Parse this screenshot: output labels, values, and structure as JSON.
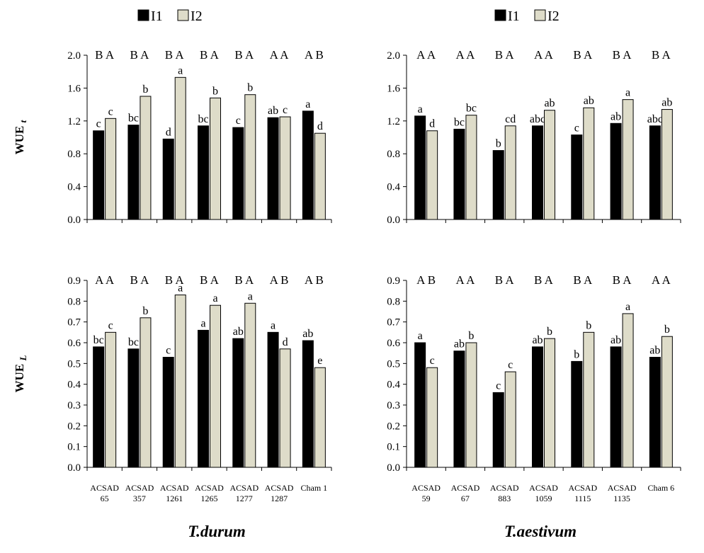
{
  "legend": {
    "left": [
      {
        "label": "I1",
        "color": "#000000"
      },
      {
        "label": "I2",
        "color": "#dedcc9"
      }
    ],
    "right": [
      {
        "label": "I1",
        "color": "#000000"
      },
      {
        "label": "I2",
        "color": "#dedcc9"
      }
    ]
  },
  "species": {
    "left": "T.durum",
    "right": "T.aestivum"
  },
  "chart_data": [
    {
      "type": "bar",
      "id": "durum-wuet",
      "ylabel": "WUE",
      "ylabel_sub": "t",
      "ylim": [
        0,
        2.0
      ],
      "yticks": [
        "0.0",
        "0.4",
        "0.8",
        "1.2",
        "1.6",
        "2.0"
      ],
      "categories": [
        "ACSAD 65",
        "ACSAD 357",
        "ACSAD 1261",
        "ACSAD 1265",
        "ACSAD 1277",
        "ACSAD 1287",
        "Cham 1"
      ],
      "group_letters": [
        "B A",
        "B A",
        "B A",
        "B A",
        "B A",
        "A A",
        "A B"
      ],
      "series": [
        {
          "name": "I1",
          "values": [
            1.08,
            1.15,
            0.98,
            1.14,
            1.12,
            1.24,
            1.32
          ],
          "letters": [
            "c",
            "bc",
            "d",
            "bc",
            "c",
            "ab",
            "a"
          ]
        },
        {
          "name": "I2",
          "values": [
            1.23,
            1.5,
            1.73,
            1.48,
            1.52,
            1.25,
            1.05
          ],
          "letters": [
            "c",
            "b",
            "a",
            "b",
            "b",
            "c",
            "d"
          ]
        }
      ],
      "xlabels": []
    },
    {
      "type": "bar",
      "id": "aestivum-wuet",
      "ylabel": "",
      "ylabel_sub": "",
      "ylim": [
        0,
        2.0
      ],
      "yticks": [
        "0.0",
        "0.4",
        "0.8",
        "1.2",
        "1.6",
        "2.0"
      ],
      "categories": [
        "ACSAD 59",
        "ACSAD 67",
        "ACSAD 883",
        "ACSAD 1059",
        "ACSAD 1115",
        "ACSAD 1135",
        "Cham 6"
      ],
      "group_letters": [
        "A A",
        "A A",
        "B A",
        "A A",
        "B A",
        "B A",
        "B A"
      ],
      "series": [
        {
          "name": "I1",
          "values": [
            1.26,
            1.1,
            0.84,
            1.14,
            1.03,
            1.17,
            1.14
          ],
          "letters": [
            "a",
            "bc",
            "b",
            "abc",
            "c",
            "ab",
            "abc"
          ]
        },
        {
          "name": "I2",
          "values": [
            1.08,
            1.27,
            1.14,
            1.33,
            1.36,
            1.46,
            1.34
          ],
          "letters": [
            "d",
            "bc",
            "cd",
            "ab",
            "ab",
            "a",
            "ab"
          ]
        }
      ],
      "xlabels": []
    },
    {
      "type": "bar",
      "id": "durum-wuel",
      "ylabel": "WUE",
      "ylabel_sub": "L",
      "ylim": [
        0,
        0.9
      ],
      "yticks": [
        "0.0",
        "0.1",
        "0.2",
        "0.3",
        "0.4",
        "0.5",
        "0.6",
        "0.7",
        "0.8",
        "0.9"
      ],
      "categories": [
        "ACSAD 65",
        "ACSAD 357",
        "ACSAD 1261",
        "ACSAD 1265",
        "ACSAD 1277",
        "ACSAD 1287",
        "Cham 1"
      ],
      "group_letters": [
        "A A",
        "B A",
        "B A",
        "B A",
        "B A",
        "A B",
        "A B"
      ],
      "series": [
        {
          "name": "I1",
          "values": [
            0.58,
            0.57,
            0.53,
            0.66,
            0.62,
            0.65,
            0.61
          ],
          "letters": [
            "bc",
            "bc",
            "c",
            "a",
            "ab",
            "a",
            "ab"
          ]
        },
        {
          "name": "I2",
          "values": [
            0.65,
            0.72,
            0.83,
            0.78,
            0.79,
            0.57,
            0.48
          ],
          "letters": [
            "c",
            "b",
            "a",
            "a",
            "a",
            "d",
            "e"
          ]
        }
      ],
      "xlabels": [
        [
          "ACSAD",
          "65"
        ],
        [
          "ACSAD",
          "357"
        ],
        [
          "ACSAD",
          "1261"
        ],
        [
          "ACSAD",
          "1265"
        ],
        [
          "ACSAD",
          "1277"
        ],
        [
          "ACSAD",
          "1287"
        ],
        [
          "Cham 1",
          ""
        ]
      ]
    },
    {
      "type": "bar",
      "id": "aestivum-wuel",
      "ylabel": "",
      "ylabel_sub": "",
      "ylim": [
        0,
        0.9
      ],
      "yticks": [
        "0.0",
        "0.1",
        "0.2",
        "0.3",
        "0.4",
        "0.5",
        "0.6",
        "0.7",
        "0.8",
        "0.9"
      ],
      "categories": [
        "ACSAD 59",
        "ACSAD 67",
        "ACSAD 883",
        "ACSAD 1059",
        "ACSAD 1115",
        "ACSAD 1135",
        "Cham 6"
      ],
      "group_letters": [
        "A B",
        "A A",
        "B A",
        "B A",
        "B A",
        "B A",
        "A A"
      ],
      "series": [
        {
          "name": "I1",
          "values": [
            0.6,
            0.56,
            0.36,
            0.58,
            0.51,
            0.58,
            0.53
          ],
          "letters": [
            "a",
            "ab",
            "c",
            "ab",
            "b",
            "ab",
            "ab"
          ]
        },
        {
          "name": "I2",
          "values": [
            0.48,
            0.6,
            0.46,
            0.62,
            0.65,
            0.74,
            0.63
          ],
          "letters": [
            "c",
            "b",
            "c",
            "b",
            "b",
            "a",
            "b"
          ]
        }
      ],
      "xlabels": [
        [
          "ACSAD",
          "59"
        ],
        [
          "ACSAD",
          "67"
        ],
        [
          "ACSAD",
          "883"
        ],
        [
          "ACSAD",
          "1059"
        ],
        [
          "ACSAD",
          "1115"
        ],
        [
          "ACSAD",
          "1135"
        ],
        [
          "Cham 6",
          ""
        ]
      ]
    }
  ]
}
